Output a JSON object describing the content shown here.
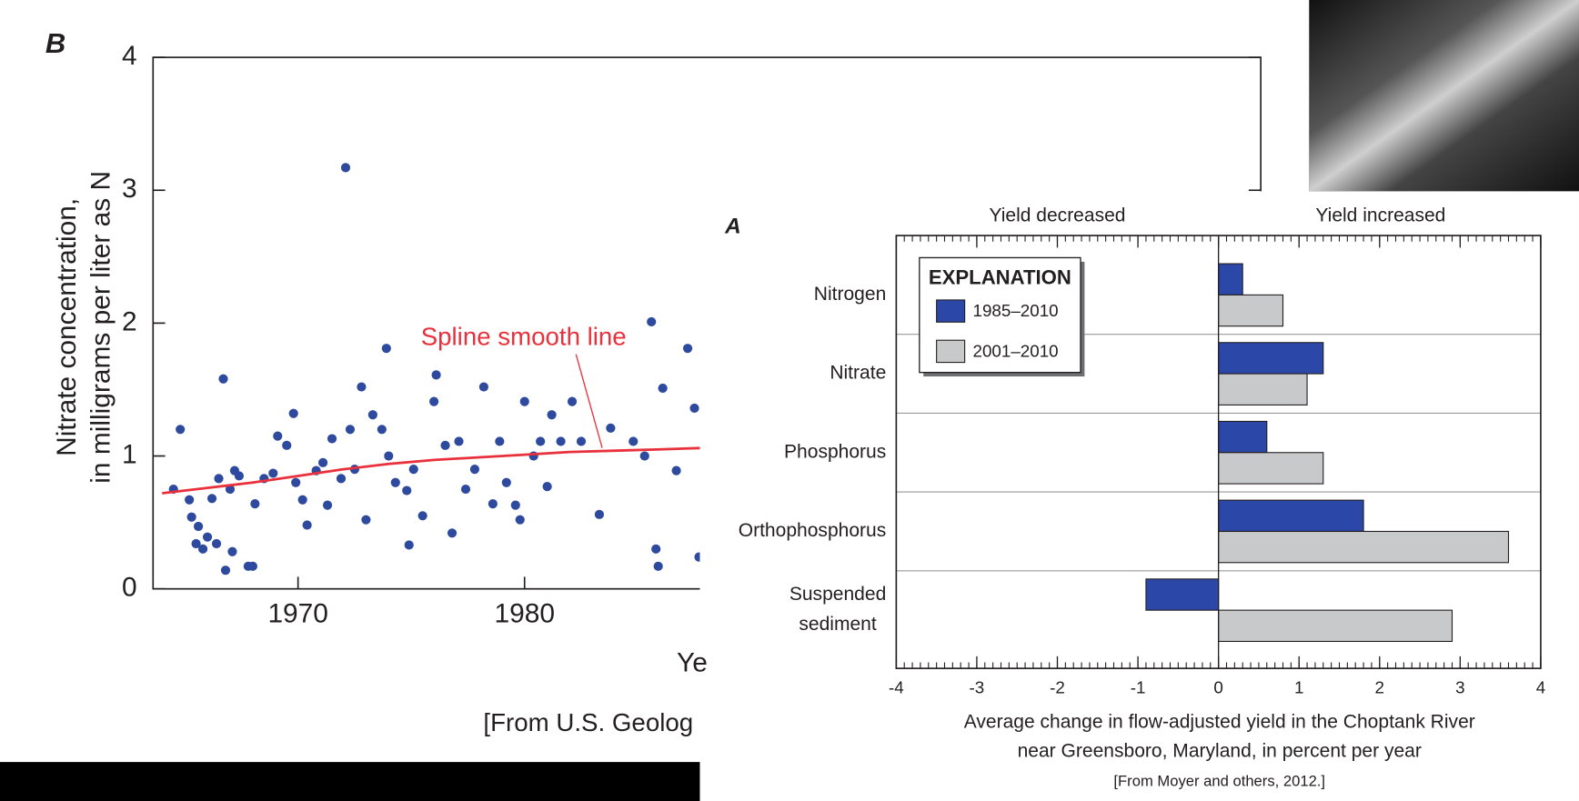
{
  "chart_data": [
    {
      "type": "scatter",
      "panel_label": "B",
      "ylabel": "Nitrate concentration,\nin milligrams per liter as N",
      "xlabel": "Ye",
      "source": "[From U.S. Geolog",
      "xlim": [
        1963.6,
        2012.5
      ],
      "ylim": [
        0,
        4
      ],
      "xticks": [
        1970,
        1980
      ],
      "yticks": [
        0,
        1,
        2,
        3,
        4
      ],
      "color": "#2e4a9e",
      "x": [
        1964.5,
        1964.8,
        1965.2,
        1965.3,
        1965.5,
        1965.6,
        1965.8,
        1966.0,
        1966.2,
        1966.4,
        1966.5,
        1966.7,
        1966.8,
        1967.0,
        1967.1,
        1967.2,
        1967.4,
        1967.8,
        1968.0,
        1968.1,
        1968.5,
        1968.9,
        1969.1,
        1969.5,
        1969.8,
        1969.9,
        1970.2,
        1970.4,
        1970.8,
        1971.1,
        1971.3,
        1971.5,
        1971.9,
        1972.1,
        1972.3,
        1972.5,
        1972.8,
        1973.0,
        1973.3,
        1973.7,
        1973.9,
        1974.0,
        1974.3,
        1974.8,
        1974.9,
        1975.1,
        1975.5,
        1976.0,
        1976.1,
        1976.5,
        1976.8,
        1977.1,
        1977.4,
        1977.8,
        1978.2,
        1978.6,
        1978.9,
        1979.2,
        1979.6,
        1979.8,
        1980.0,
        1980.4,
        1980.7,
        1981.0,
        1981.2,
        1981.6,
        1982.1,
        1982.5,
        1983.3,
        1983.8,
        1984.8,
        1985.3,
        1985.6,
        1985.8,
        1985.9,
        1986.1,
        1986.7,
        1987.2,
        1987.5,
        1987.7
      ],
      "values": [
        0.75,
        1.2,
        0.67,
        0.54,
        0.34,
        0.47,
        0.3,
        0.39,
        0.68,
        0.34,
        0.83,
        1.58,
        0.14,
        0.75,
        0.28,
        0.89,
        0.85,
        0.17,
        0.17,
        0.64,
        0.83,
        0.87,
        1.15,
        1.08,
        1.32,
        0.8,
        0.67,
        0.48,
        0.89,
        0.95,
        0.63,
        1.13,
        0.83,
        3.17,
        1.2,
        0.9,
        1.52,
        0.52,
        1.31,
        1.2,
        1.81,
        1.0,
        0.8,
        0.74,
        0.33,
        0.9,
        0.55,
        1.41,
        1.61,
        1.08,
        0.42,
        1.11,
        0.75,
        0.9,
        1.52,
        0.64,
        1.11,
        0.8,
        0.63,
        0.52,
        1.41,
        1.0,
        1.11,
        0.77,
        1.31,
        1.11,
        1.41,
        1.11,
        0.56,
        1.21,
        1.11,
        1.0,
        2.01,
        0.3,
        0.17,
        1.51,
        0.89,
        1.81,
        1.36,
        0.24
      ],
      "spline": {
        "label": "Spline smooth line",
        "color": "#e8313c",
        "x": [
          1964,
          1966,
          1968,
          1970,
          1972,
          1974,
          1976,
          1978,
          1980,
          1982,
          1984,
          1986,
          1987.8
        ],
        "values": [
          0.72,
          0.76,
          0.8,
          0.85,
          0.9,
          0.94,
          0.97,
          0.99,
          1.01,
          1.03,
          1.04,
          1.05,
          1.06
        ]
      }
    },
    {
      "type": "hbar",
      "panel_label": "A",
      "left_label": "Yield decreased",
      "right_label": "Yield increased",
      "categories": [
        "Nitrogen",
        "Nitrate",
        "Phosphorus",
        "Orthophosphorus",
        "Suspended\nsediment"
      ],
      "legend_title": "EXPLANATION",
      "series": [
        {
          "name": "1985–2010",
          "color": "#2b48a8",
          "values": [
            0.3,
            1.3,
            0.6,
            1.8,
            -0.9
          ]
        },
        {
          "name": "2001–2010",
          "color": "#c8c9cb",
          "values": [
            0.8,
            1.1,
            1.3,
            3.6,
            2.9
          ]
        }
      ],
      "xlim": [
        -4,
        4
      ],
      "xticks": [
        -4,
        -3,
        -2,
        -1,
        0,
        1,
        2,
        3,
        4
      ],
      "xlabel": "Average change in flow-adjusted yield in the Choptank River\nnear Greensboro, Maryland, in percent per year",
      "source": "[From Moyer and others, 2012.]"
    }
  ]
}
